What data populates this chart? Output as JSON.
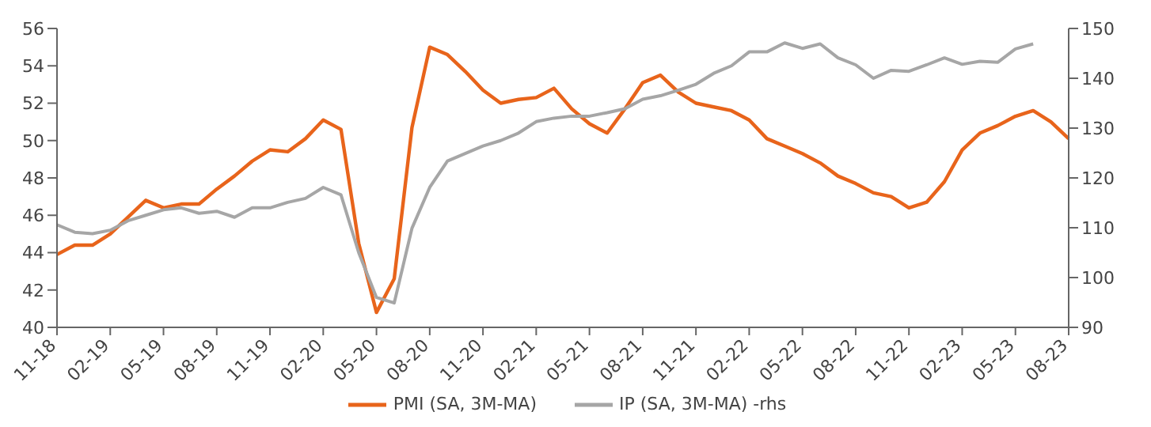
{
  "chart_data": {
    "type": "line",
    "categories": [
      "11-18",
      null,
      null,
      "02-19",
      null,
      null,
      "05-19",
      null,
      null,
      "08-19",
      null,
      null,
      "11-19",
      null,
      null,
      "02-20",
      null,
      null,
      "05-20",
      null,
      null,
      "08-20",
      null,
      null,
      "11-20",
      null,
      null,
      "02-21",
      null,
      null,
      "05-21",
      null,
      null,
      "08-21",
      null,
      null,
      "11-21",
      null,
      null,
      "02-22",
      null,
      null,
      "05-22",
      null,
      null,
      "08-22",
      null,
      null,
      "11-22",
      null,
      null,
      "02-23",
      null,
      null,
      "05-23",
      null,
      null,
      "08-23"
    ],
    "series": [
      {
        "name": "PMI (SA, 3M-MA)",
        "color": "#e8641b",
        "values": [
          43.9,
          44.4,
          44.4,
          45.0,
          45.9,
          46.8,
          46.4,
          46.6,
          46.6,
          47.4,
          48.1,
          48.9,
          49.5,
          49.4,
          50.1,
          51.1,
          50.6,
          44.5,
          40.8,
          42.6,
          50.7,
          55.0,
          54.6,
          53.7,
          52.7,
          52.0,
          52.2,
          52.3,
          52.8,
          51.7,
          50.9,
          50.4,
          51.7,
          53.1,
          53.5,
          52.6,
          52.0,
          51.8,
          51.6,
          51.1,
          50.1,
          49.7,
          49.3,
          48.8,
          48.1,
          47.7,
          47.2,
          47.0,
          46.4,
          46.7,
          47.8,
          49.5,
          50.4,
          50.8,
          51.3,
          51.6,
          51.0,
          50.1
        ]
      },
      {
        "name": "IP (SA, 3M-MA) -rhs",
        "color": "#a6a6a6",
        "axis": "y2",
        "values": [
          110.6,
          109.1,
          108.8,
          109.5,
          111.4,
          112.5,
          113.6,
          114,
          112.9,
          113.3,
          112.1,
          114,
          114,
          115.1,
          115.9,
          118.1,
          116.6,
          105,
          96,
          94.9,
          109.9,
          118.1,
          123.4,
          124.9,
          126.4,
          127.5,
          129,
          131.3,
          132,
          132.4,
          132.4,
          133.1,
          133.9,
          135.8,
          136.5,
          137.6,
          138.8,
          141,
          142.5,
          145.3,
          145.3,
          147.1,
          146,
          146.9,
          144.1,
          142.7,
          140,
          141.6,
          141.4,
          142.7,
          144.1,
          142.8,
          143.4,
          143.2,
          145.9,
          146.9,
          null,
          null
        ]
      }
    ],
    "ylim": [
      40,
      56
    ],
    "yticks": [
      40,
      42,
      44,
      46,
      48,
      50,
      52,
      54,
      56
    ],
    "y2lim": [
      90,
      150
    ],
    "y2ticks": [
      90,
      100,
      110,
      120,
      130,
      140,
      150
    ],
    "grid": false,
    "legend": "bottom",
    "marker": "none",
    "line_style": "solid"
  }
}
